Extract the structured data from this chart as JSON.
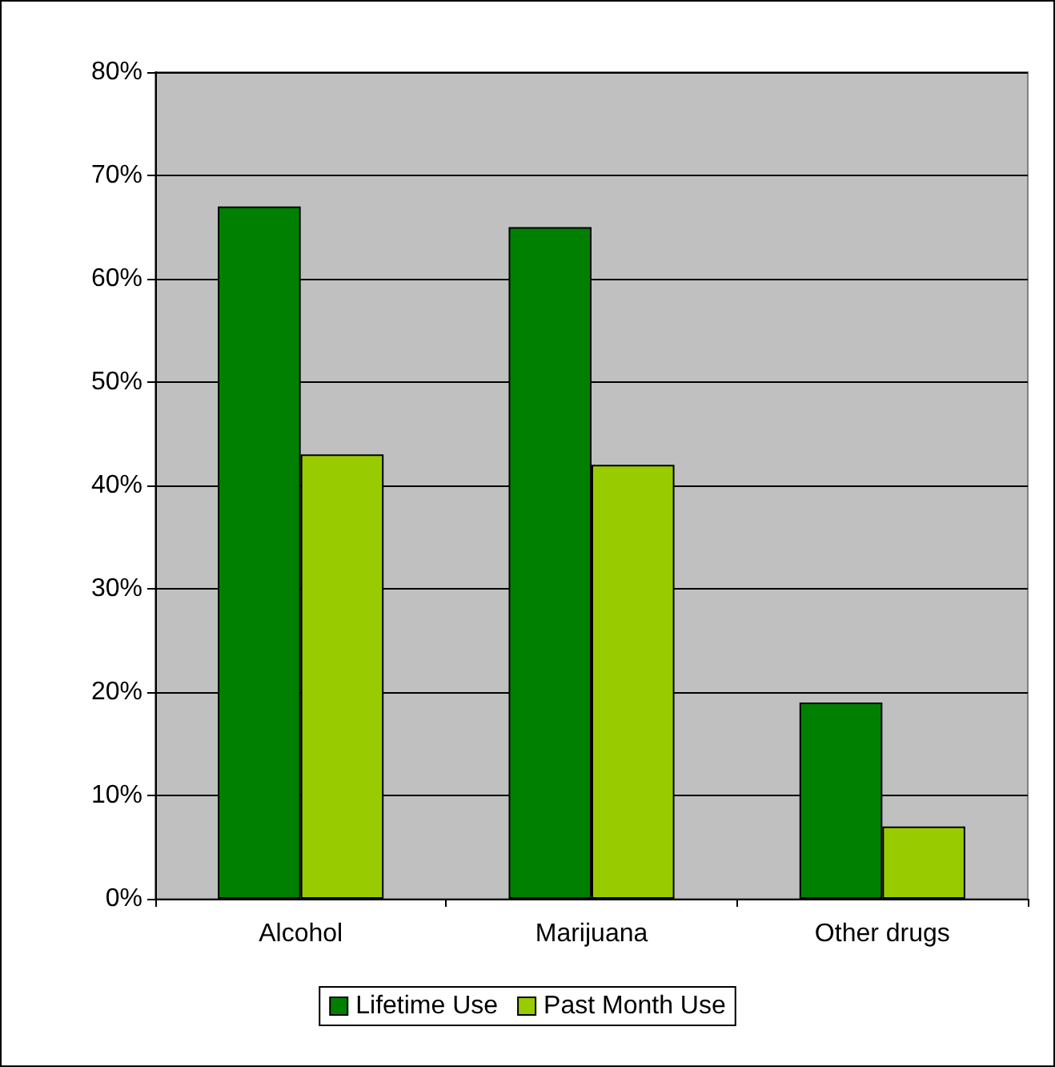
{
  "chart_data": {
    "type": "bar",
    "categories": [
      "Alcohol",
      "Marijuana",
      "Other drugs"
    ],
    "series": [
      {
        "name": "Lifetime Use",
        "color": "#008000",
        "values": [
          67,
          65,
          19
        ]
      },
      {
        "name": "Past Month Use",
        "color": "#99cc00",
        "values": [
          43,
          42,
          7
        ]
      }
    ],
    "ylim": [
      0,
      80
    ],
    "yticks": [
      {
        "value": 0,
        "label": "0%"
      },
      {
        "value": 10,
        "label": "10%"
      },
      {
        "value": 20,
        "label": "20%"
      },
      {
        "value": 30,
        "label": "30%"
      },
      {
        "value": 40,
        "label": "40%"
      },
      {
        "value": 50,
        "label": "50%"
      },
      {
        "value": 60,
        "label": "60%"
      },
      {
        "value": 70,
        "label": "70%"
      },
      {
        "value": 80,
        "label": "80%"
      }
    ],
    "grid": "y",
    "legend": "bottom"
  }
}
